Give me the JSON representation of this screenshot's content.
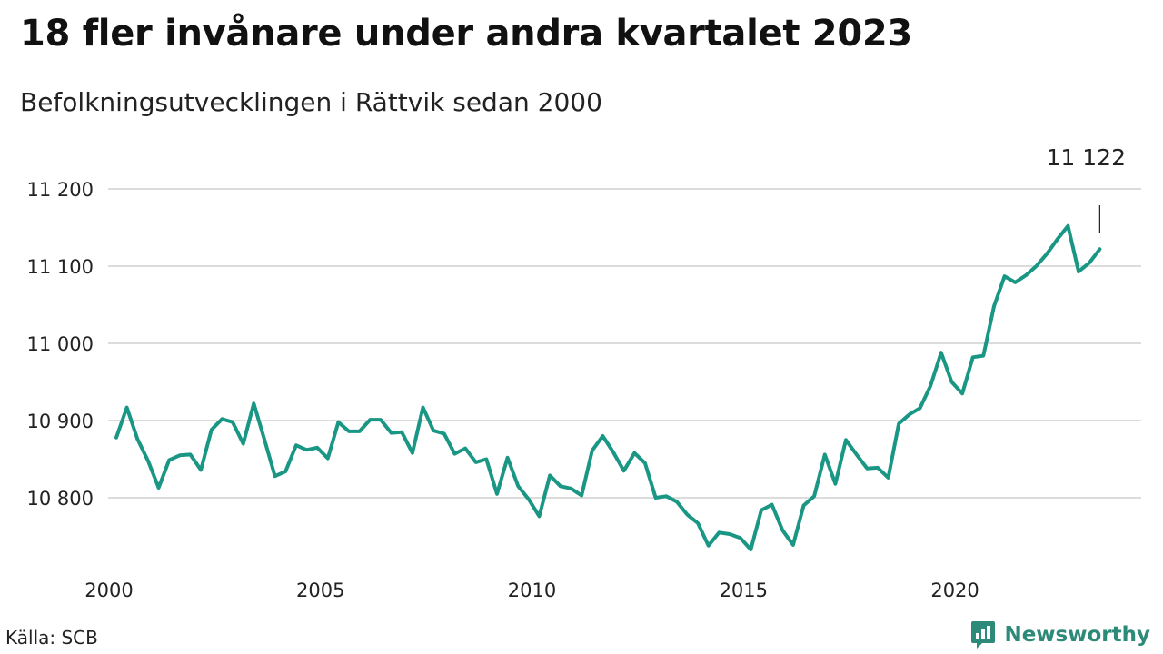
{
  "chart_data": {
    "type": "line",
    "title": "18 fler invånare under andra kvartalet 2023",
    "subtitle": "Befolkningsutvecklingen i Rättvik sedan 2000",
    "xlabel": "",
    "ylabel": "",
    "xlim": [
      2000,
      2023.5
    ],
    "ylim": [
      10710,
      11200
    ],
    "y_ticks": [
      10800,
      10900,
      11000,
      11100,
      11200
    ],
    "y_tick_labels": [
      "10 800",
      "10 900",
      "11 000",
      "11 100",
      "11 200"
    ],
    "x_ticks": [
      2000,
      2005,
      2010,
      2015,
      2020
    ],
    "x_tick_labels": [
      "2000",
      "2005",
      "2010",
      "2015",
      "2020"
    ],
    "grid": true,
    "line_color": "#1a9684",
    "series": [
      {
        "values": [
          [
            2000.0,
            10878
          ],
          [
            2000.25,
            10917
          ],
          [
            2000.5,
            10876
          ],
          [
            2000.75,
            10848
          ],
          [
            2001.0,
            10813
          ],
          [
            2001.25,
            10849
          ],
          [
            2001.5,
            10855
          ],
          [
            2001.75,
            10856
          ],
          [
            2002.0,
            10836
          ],
          [
            2002.25,
            10888
          ],
          [
            2002.5,
            10902
          ],
          [
            2002.75,
            10898
          ],
          [
            2003.0,
            10870
          ],
          [
            2003.25,
            10922
          ],
          [
            2003.5,
            10876
          ],
          [
            2003.75,
            10828
          ],
          [
            2004.0,
            10834
          ],
          [
            2004.25,
            10868
          ],
          [
            2004.5,
            10862
          ],
          [
            2004.75,
            10865
          ],
          [
            2005.0,
            10851
          ],
          [
            2005.25,
            10898
          ],
          [
            2005.5,
            10886
          ],
          [
            2005.75,
            10886
          ],
          [
            2006.0,
            10901
          ],
          [
            2006.25,
            10901
          ],
          [
            2006.5,
            10884
          ],
          [
            2006.75,
            10885
          ],
          [
            2007.0,
            10858
          ],
          [
            2007.25,
            10917
          ],
          [
            2007.5,
            10887
          ],
          [
            2007.75,
            10883
          ],
          [
            2008.0,
            10857
          ],
          [
            2008.25,
            10864
          ],
          [
            2008.5,
            10846
          ],
          [
            2008.75,
            10850
          ],
          [
            2009.0,
            10805
          ],
          [
            2009.25,
            10852
          ],
          [
            2009.5,
            10815
          ],
          [
            2009.75,
            10798
          ],
          [
            2010.0,
            10776
          ],
          [
            2010.25,
            10829
          ],
          [
            2010.5,
            10815
          ],
          [
            2010.75,
            10812
          ],
          [
            2011.0,
            10803
          ],
          [
            2011.25,
            10861
          ],
          [
            2011.5,
            10880
          ],
          [
            2011.75,
            10859
          ],
          [
            2012.0,
            10835
          ],
          [
            2012.25,
            10858
          ],
          [
            2012.5,
            10845
          ],
          [
            2012.75,
            10800
          ],
          [
            2013.0,
            10802
          ],
          [
            2013.25,
            10795
          ],
          [
            2013.5,
            10778
          ],
          [
            2013.75,
            10767
          ],
          [
            2014.0,
            10738
          ],
          [
            2014.25,
            10755
          ],
          [
            2014.5,
            10753
          ],
          [
            2014.75,
            10748
          ],
          [
            2015.0,
            10733
          ],
          [
            2015.25,
            10784
          ],
          [
            2015.5,
            10791
          ],
          [
            2015.75,
            10758
          ],
          [
            2016.0,
            10739
          ],
          [
            2016.25,
            10790
          ],
          [
            2016.5,
            10802
          ],
          [
            2016.75,
            10856
          ],
          [
            2017.0,
            10818
          ],
          [
            2017.25,
            10875
          ],
          [
            2017.5,
            10856
          ],
          [
            2017.75,
            10838
          ],
          [
            2018.0,
            10839
          ],
          [
            2018.25,
            10826
          ],
          [
            2018.5,
            10896
          ],
          [
            2018.75,
            10908
          ],
          [
            2019.0,
            10916
          ],
          [
            2019.25,
            10945
          ],
          [
            2019.5,
            10988
          ],
          [
            2019.75,
            10950
          ],
          [
            2020.0,
            10935
          ],
          [
            2020.25,
            10982
          ],
          [
            2020.5,
            10984
          ],
          [
            2020.75,
            11048
          ],
          [
            2021.0,
            11087
          ],
          [
            2021.25,
            11079
          ],
          [
            2021.5,
            11088
          ],
          [
            2021.75,
            11100
          ],
          [
            2022.0,
            11116
          ],
          [
            2022.25,
            11135
          ],
          [
            2022.5,
            11152
          ],
          [
            2022.75,
            11093
          ],
          [
            2023.0,
            11104
          ],
          [
            2023.25,
            11122
          ]
        ]
      }
    ],
    "end_label": {
      "text": "11 122",
      "x": 2023.25,
      "y": 11122
    }
  },
  "source_text": "Källa: SCB",
  "brand": {
    "name": "Newsworthy",
    "icon": "newsworthy-logo-icon",
    "color": "#2d8a78"
  }
}
